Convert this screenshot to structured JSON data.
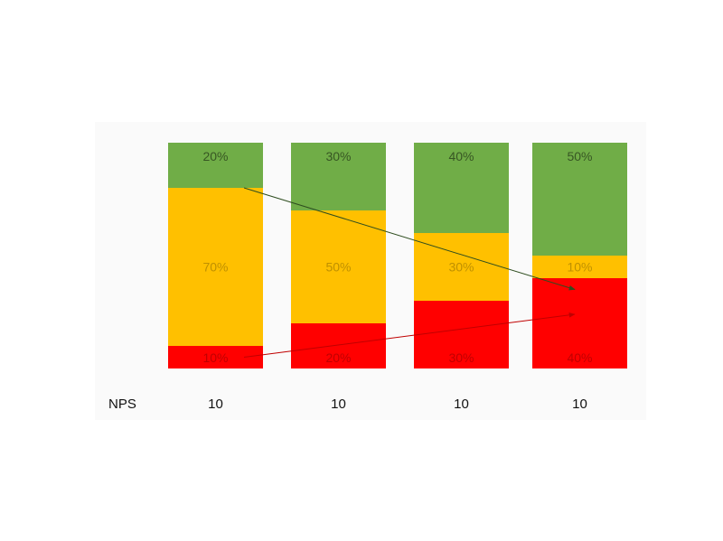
{
  "chart_data": {
    "type": "bar",
    "stacked": true,
    "title": "",
    "xlabel": "",
    "ylabel": "",
    "ylim": [
      0,
      100
    ],
    "grid": false,
    "categories": [
      "",
      "",
      "",
      ""
    ],
    "series": [
      {
        "key": "bottom",
        "color": "#ff0000",
        "values": [
          10,
          20,
          30,
          40
        ],
        "labels": [
          "10%",
          "20%",
          "30%",
          "40%"
        ]
      },
      {
        "key": "middle",
        "color": "#ffc000",
        "values": [
          70,
          50,
          30,
          10
        ],
        "labels": [
          "70%",
          "50%",
          "30%",
          "10%"
        ]
      },
      {
        "key": "top",
        "color": "#70ad47",
        "values": [
          20,
          30,
          40,
          50
        ],
        "labels": [
          "20%",
          "30%",
          "40%",
          "50%"
        ]
      }
    ],
    "label_colors": {
      "bottom": "#c00000",
      "middle": "#bf9000",
      "top": "#375623"
    },
    "row_label": "NPS",
    "row_values": [
      "10",
      "10",
      "10",
      "10"
    ],
    "trend_arrows": [
      {
        "series": "top",
        "color": "#2e4d1f",
        "from": {
          "category": 0,
          "value": 20
        },
        "to": {
          "category": 3,
          "value": 65
        }
      },
      {
        "series": "bottom",
        "color": "#c00000",
        "from": {
          "category": 0,
          "value": 5
        },
        "to": {
          "category": 3,
          "value": 24
        }
      }
    ]
  }
}
